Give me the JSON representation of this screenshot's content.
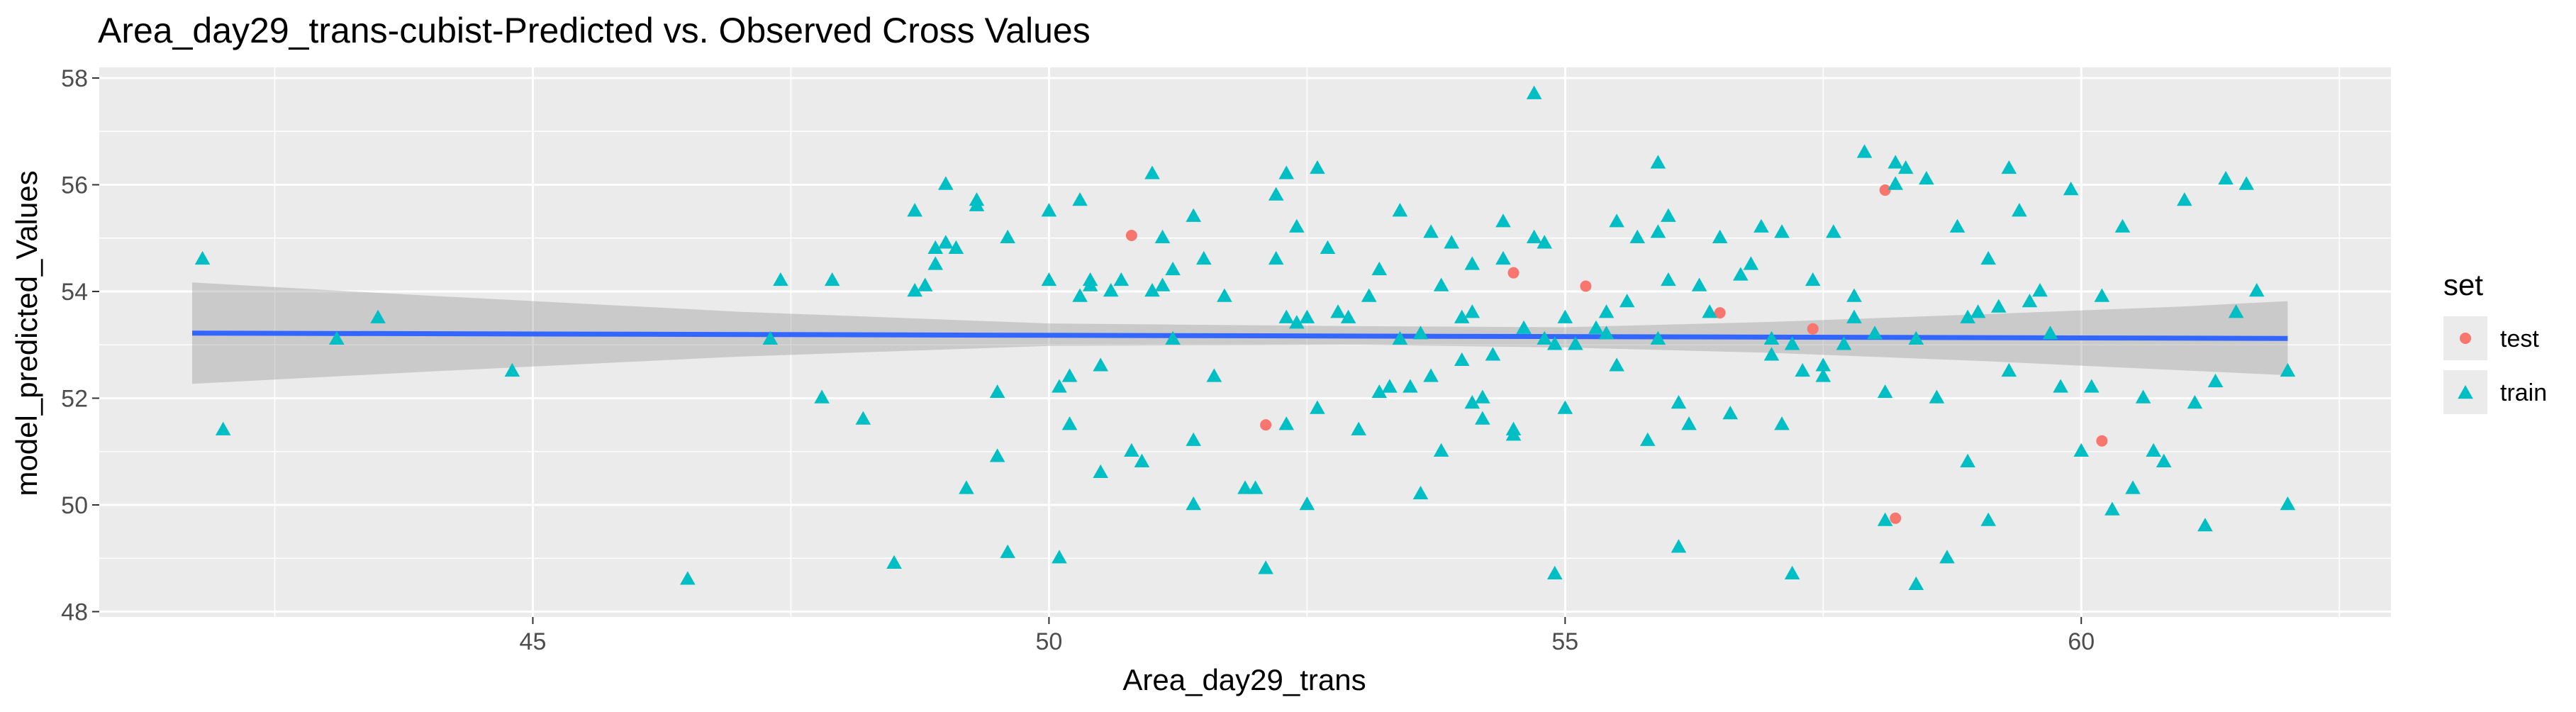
{
  "chart_data": {
    "type": "scatter",
    "title": "Area_day29_trans-cubist-Predicted vs. Observed Cross Values",
    "xlabel": "Area_day29_trans",
    "ylabel": "model_predicted_Values",
    "xlim": [
      40.8,
      63.0
    ],
    "ylim": [
      47.9,
      58.2
    ],
    "x_ticks": [
      45,
      50,
      55,
      60
    ],
    "x_tick_labels": [
      "45",
      "50",
      "55",
      "60"
    ],
    "y_ticks": [
      48,
      50,
      52,
      54,
      56,
      58
    ],
    "y_tick_labels": [
      "48",
      "50",
      "52",
      "54",
      "56",
      "58"
    ],
    "grid": true,
    "legend": {
      "title": "set",
      "position": "right",
      "entries": [
        {
          "label": "test",
          "color": "#F8766D",
          "shape": "circle"
        },
        {
          "label": "train",
          "color": "#00BFC4",
          "shape": "triangle"
        }
      ]
    },
    "colors": {
      "panel_bg": "#EBEBEB",
      "grid": "#FFFFFF",
      "test": "#F8766D",
      "train": "#00BFC4",
      "trend": "#3366FF",
      "band": "#999999"
    },
    "trend": {
      "x": [
        41.7,
        62.0
      ],
      "y": [
        53.22,
        53.12
      ]
    },
    "confidence_band": {
      "x": [
        41.7,
        44.0,
        47.0,
        50.0,
        53.0,
        55.0,
        57.0,
        59.0,
        61.0,
        62.0
      ],
      "lower": [
        52.27,
        52.5,
        52.78,
        52.98,
        53.0,
        52.95,
        52.85,
        52.7,
        52.52,
        52.43
      ],
      "upper": [
        54.17,
        53.92,
        53.62,
        53.4,
        53.35,
        53.33,
        53.43,
        53.57,
        53.72,
        53.82
      ]
    },
    "series": [
      {
        "name": "test",
        "points": [
          [
            50.8,
            55.05
          ],
          [
            52.1,
            51.5
          ],
          [
            54.5,
            54.35
          ],
          [
            55.2,
            54.1
          ],
          [
            56.5,
            53.6
          ],
          [
            57.4,
            53.3
          ],
          [
            58.1,
            55.9
          ],
          [
            58.2,
            49.75
          ],
          [
            60.2,
            51.2
          ]
        ]
      },
      {
        "name": "train",
        "points": [
          [
            41.8,
            54.6
          ],
          [
            42.0,
            51.4
          ],
          [
            43.1,
            53.1
          ],
          [
            43.5,
            53.5
          ],
          [
            44.8,
            52.5
          ],
          [
            46.5,
            48.6
          ],
          [
            47.3,
            53.1
          ],
          [
            47.4,
            54.2
          ],
          [
            47.8,
            52.0
          ],
          [
            47.9,
            54.2
          ],
          [
            48.2,
            51.6
          ],
          [
            48.5,
            48.9
          ],
          [
            48.7,
            55.5
          ],
          [
            48.7,
            54.0
          ],
          [
            48.8,
            54.1
          ],
          [
            48.9,
            54.5
          ],
          [
            48.9,
            54.8
          ],
          [
            49.0,
            56.0
          ],
          [
            49.0,
            54.9
          ],
          [
            49.1,
            54.8
          ],
          [
            49.2,
            50.3
          ],
          [
            49.3,
            55.6
          ],
          [
            49.3,
            55.7
          ],
          [
            49.5,
            50.9
          ],
          [
            49.5,
            52.1
          ],
          [
            49.6,
            49.1
          ],
          [
            49.6,
            55.0
          ],
          [
            50.0,
            55.5
          ],
          [
            50.0,
            54.2
          ],
          [
            50.1,
            52.2
          ],
          [
            50.1,
            49.0
          ],
          [
            50.2,
            52.4
          ],
          [
            50.2,
            51.5
          ],
          [
            50.3,
            53.9
          ],
          [
            50.3,
            55.7
          ],
          [
            50.4,
            54.2
          ],
          [
            50.4,
            54.1
          ],
          [
            50.5,
            50.6
          ],
          [
            50.5,
            52.6
          ],
          [
            50.6,
            54.0
          ],
          [
            50.7,
            54.2
          ],
          [
            50.8,
            51.0
          ],
          [
            50.9,
            50.8
          ],
          [
            51.0,
            56.2
          ],
          [
            51.0,
            54.0
          ],
          [
            51.1,
            55.0
          ],
          [
            51.1,
            54.1
          ],
          [
            51.2,
            54.4
          ],
          [
            51.2,
            53.1
          ],
          [
            51.4,
            55.4
          ],
          [
            51.4,
            51.2
          ],
          [
            51.4,
            50.0
          ],
          [
            51.5,
            54.6
          ],
          [
            51.6,
            52.4
          ],
          [
            51.7,
            53.9
          ],
          [
            51.9,
            50.3
          ],
          [
            52.0,
            50.3
          ],
          [
            52.1,
            48.8
          ],
          [
            52.2,
            54.6
          ],
          [
            52.2,
            55.8
          ],
          [
            52.3,
            53.5
          ],
          [
            52.3,
            51.5
          ],
          [
            52.3,
            56.2
          ],
          [
            52.4,
            55.2
          ],
          [
            52.4,
            53.4
          ],
          [
            52.5,
            50.0
          ],
          [
            52.5,
            53.5
          ],
          [
            52.6,
            56.3
          ],
          [
            52.6,
            51.8
          ],
          [
            52.7,
            54.8
          ],
          [
            52.8,
            53.6
          ],
          [
            52.9,
            53.5
          ],
          [
            53.0,
            51.4
          ],
          [
            53.1,
            53.9
          ],
          [
            53.2,
            52.1
          ],
          [
            53.2,
            54.4
          ],
          [
            53.3,
            52.2
          ],
          [
            53.3,
            52.2
          ],
          [
            53.4,
            53.1
          ],
          [
            53.4,
            55.5
          ],
          [
            53.5,
            52.2
          ],
          [
            53.6,
            50.2
          ],
          [
            53.6,
            53.2
          ],
          [
            53.7,
            55.1
          ],
          [
            53.7,
            52.4
          ],
          [
            53.8,
            51.0
          ],
          [
            53.8,
            54.1
          ],
          [
            53.9,
            54.9
          ],
          [
            54.0,
            53.5
          ],
          [
            54.0,
            52.7
          ],
          [
            54.1,
            53.6
          ],
          [
            54.1,
            54.5
          ],
          [
            54.1,
            51.9
          ],
          [
            54.2,
            51.6
          ],
          [
            54.2,
            52.0
          ],
          [
            54.3,
            52.8
          ],
          [
            54.4,
            54.6
          ],
          [
            54.4,
            55.3
          ],
          [
            54.5,
            51.3
          ],
          [
            54.5,
            51.4
          ],
          [
            54.6,
            53.3
          ],
          [
            54.7,
            57.7
          ],
          [
            54.7,
            55.0
          ],
          [
            54.8,
            53.1
          ],
          [
            54.8,
            54.9
          ],
          [
            54.9,
            53.0
          ],
          [
            54.9,
            48.7
          ],
          [
            55.0,
            53.5
          ],
          [
            55.0,
            51.8
          ],
          [
            55.1,
            53.0
          ],
          [
            55.3,
            53.3
          ],
          [
            55.4,
            53.2
          ],
          [
            55.4,
            53.6
          ],
          [
            55.5,
            55.3
          ],
          [
            55.5,
            52.6
          ],
          [
            55.6,
            53.8
          ],
          [
            55.7,
            55.0
          ],
          [
            55.8,
            51.2
          ],
          [
            55.9,
            53.1
          ],
          [
            55.9,
            56.4
          ],
          [
            55.9,
            55.1
          ],
          [
            56.0,
            54.2
          ],
          [
            56.0,
            55.4
          ],
          [
            56.1,
            49.2
          ],
          [
            56.1,
            51.9
          ],
          [
            56.2,
            51.5
          ],
          [
            56.3,
            54.1
          ],
          [
            56.4,
            53.6
          ],
          [
            56.5,
            55.0
          ],
          [
            56.6,
            51.7
          ],
          [
            56.7,
            54.3
          ],
          [
            56.8,
            54.5
          ],
          [
            56.9,
            55.2
          ],
          [
            57.0,
            53.1
          ],
          [
            57.0,
            52.8
          ],
          [
            57.1,
            51.5
          ],
          [
            57.1,
            55.1
          ],
          [
            57.2,
            48.7
          ],
          [
            57.2,
            53.0
          ],
          [
            57.3,
            52.5
          ],
          [
            57.4,
            54.2
          ],
          [
            57.5,
            52.6
          ],
          [
            57.5,
            52.4
          ],
          [
            57.6,
            55.1
          ],
          [
            57.7,
            53.0
          ],
          [
            57.8,
            53.5
          ],
          [
            57.8,
            53.9
          ],
          [
            57.9,
            56.6
          ],
          [
            58.0,
            53.2
          ],
          [
            58.1,
            49.7
          ],
          [
            58.1,
            52.1
          ],
          [
            58.2,
            56.0
          ],
          [
            58.2,
            56.4
          ],
          [
            58.3,
            56.3
          ],
          [
            58.4,
            48.5
          ],
          [
            58.4,
            53.1
          ],
          [
            58.5,
            56.1
          ],
          [
            58.6,
            52.0
          ],
          [
            58.7,
            49.0
          ],
          [
            58.8,
            55.2
          ],
          [
            58.9,
            53.5
          ],
          [
            58.9,
            50.8
          ],
          [
            59.0,
            53.6
          ],
          [
            59.1,
            49.7
          ],
          [
            59.1,
            54.6
          ],
          [
            59.2,
            53.7
          ],
          [
            59.3,
            52.5
          ],
          [
            59.3,
            56.3
          ],
          [
            59.4,
            55.5
          ],
          [
            59.5,
            53.8
          ],
          [
            59.6,
            54.0
          ],
          [
            59.7,
            53.2
          ],
          [
            59.8,
            52.2
          ],
          [
            59.9,
            55.9
          ],
          [
            60.0,
            51.0
          ],
          [
            60.1,
            52.2
          ],
          [
            60.2,
            53.9
          ],
          [
            60.3,
            49.9
          ],
          [
            60.4,
            55.2
          ],
          [
            60.5,
            50.3
          ],
          [
            60.6,
            52.0
          ],
          [
            60.7,
            51.0
          ],
          [
            60.8,
            50.8
          ],
          [
            61.0,
            55.7
          ],
          [
            61.1,
            51.9
          ],
          [
            61.2,
            49.6
          ],
          [
            61.3,
            52.3
          ],
          [
            61.4,
            56.1
          ],
          [
            61.5,
            53.6
          ],
          [
            61.6,
            56.0
          ],
          [
            61.7,
            54.0
          ],
          [
            62.0,
            50.0
          ],
          [
            62.0,
            52.5
          ]
        ]
      }
    ]
  }
}
